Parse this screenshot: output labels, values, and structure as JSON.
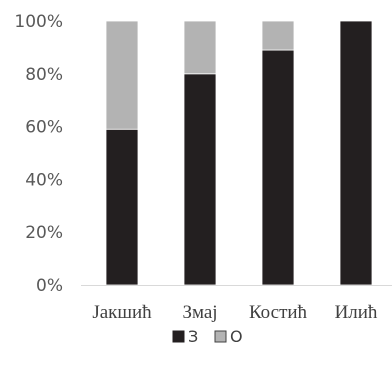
{
  "chart_data": {
    "type": "bar",
    "stacked": true,
    "percent": true,
    "categories": [
      "Јакшић",
      "Змај",
      "Костић",
      "Илић"
    ],
    "series": [
      {
        "name": "З",
        "values": [
          59,
          80,
          89,
          100
        ],
        "color": "#231f20"
      },
      {
        "name": "О",
        "values": [
          41,
          20,
          11,
          0
        ],
        "color": "#b3b3b3"
      }
    ],
    "yticks": [
      "0%",
      "20%",
      "40%",
      "60%",
      "80%",
      "100%"
    ],
    "ylim": [
      0,
      100
    ],
    "grid": false,
    "legend": "bottom"
  }
}
